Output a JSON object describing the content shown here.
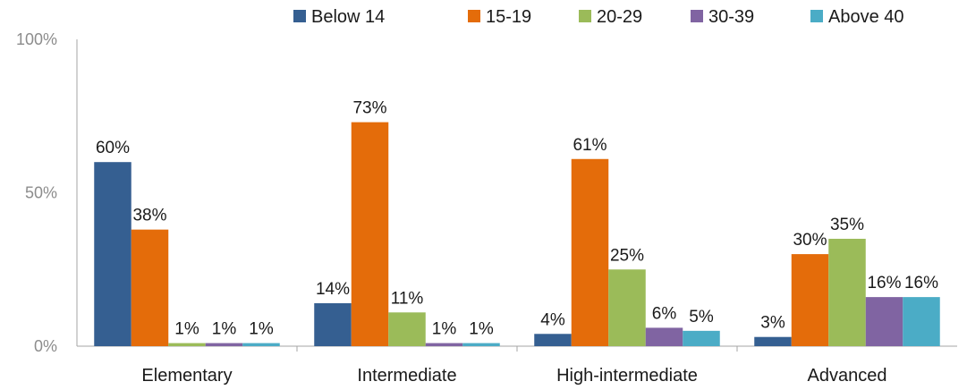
{
  "chart_data": {
    "type": "bar",
    "categories": [
      "Elementary",
      "Intermediate",
      "High-intermediate",
      "Advanced"
    ],
    "series": [
      {
        "name": "Below 14",
        "color": "#355f91",
        "values": [
          60,
          14,
          4,
          3
        ]
      },
      {
        "name": "15-19",
        "color": "#e46c0a",
        "values": [
          38,
          73,
          61,
          30
        ]
      },
      {
        "name": "20-29",
        "color": "#9bbb59",
        "values": [
          1,
          11,
          25,
          35
        ]
      },
      {
        "name": "30-39",
        "color": "#8064a2",
        "values": [
          1,
          1,
          6,
          16
        ]
      },
      {
        "name": "Above 40",
        "color": "#4bacc6",
        "values": [
          1,
          1,
          5,
          16
        ]
      }
    ],
    "y_ticks": [
      "0%",
      "50%",
      "100%"
    ],
    "ylim": [
      0,
      100
    ],
    "value_suffix": "%",
    "legend_position": "top",
    "grid": false
  }
}
